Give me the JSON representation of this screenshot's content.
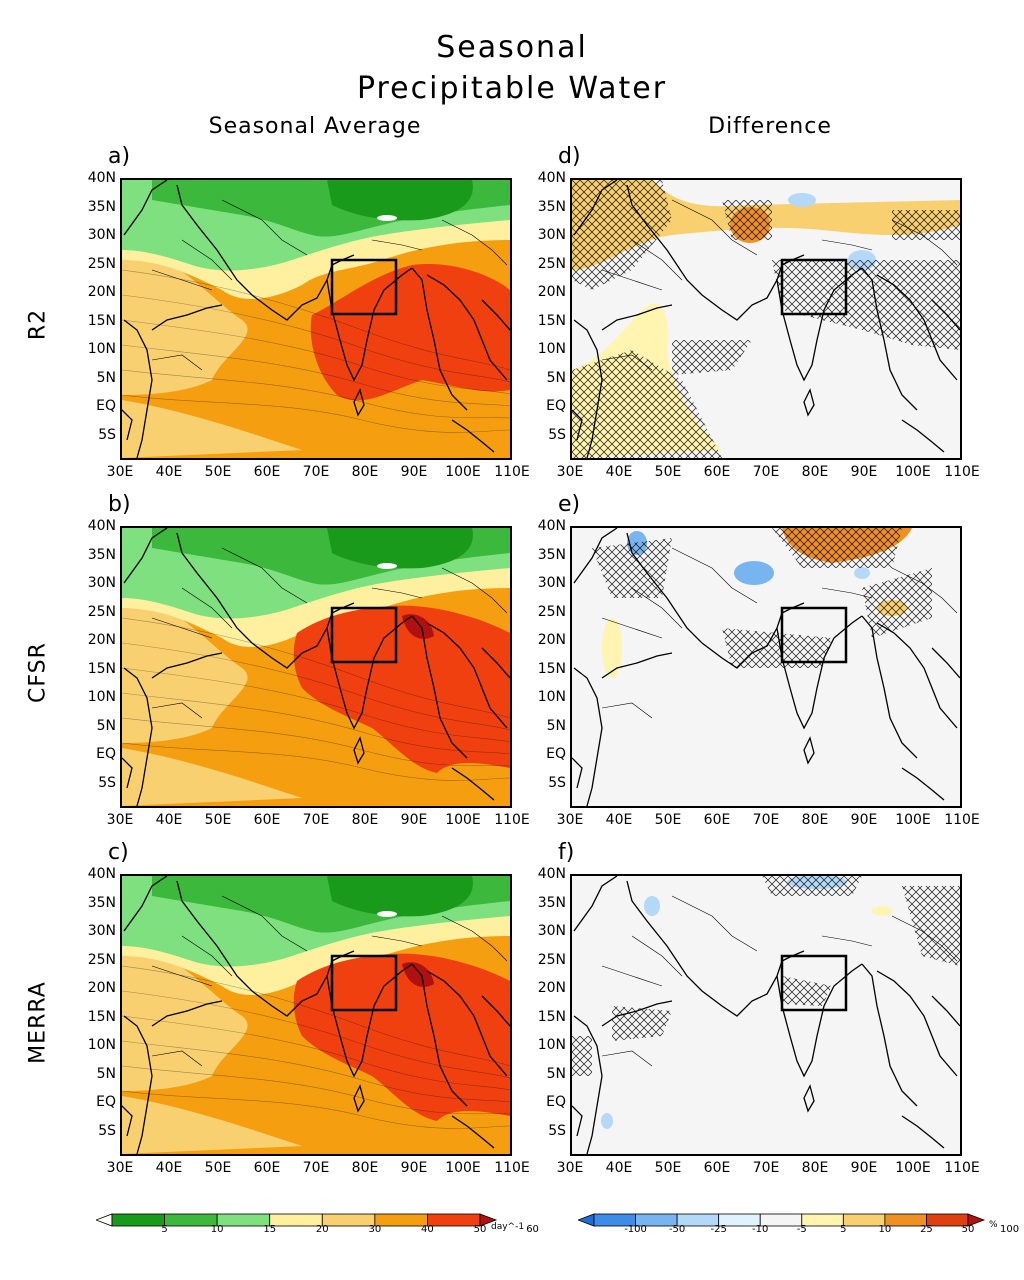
{
  "title": {
    "line1": "Seasonal",
    "line2": "Precipitable Water"
  },
  "column_titles": {
    "left": "Seasonal Average",
    "right": "Difference"
  },
  "row_labels": [
    "R2",
    "CFSR",
    "MERRA"
  ],
  "panels": [
    {
      "label": "a)",
      "kind": "average"
    },
    {
      "label": "d)",
      "kind": "difference"
    },
    {
      "label": "b)",
      "kind": "average"
    },
    {
      "label": "e)",
      "kind": "difference"
    },
    {
      "label": "c)",
      "kind": "average"
    },
    {
      "label": "f)",
      "kind": "difference"
    }
  ],
  "axes": {
    "lat_ticks": [
      "40N",
      "35N",
      "30N",
      "25N",
      "20N",
      "15N",
      "10N",
      "5N",
      "EQ",
      "5S"
    ],
    "lon_ticks": [
      "30E",
      "40E",
      "50E",
      "60E",
      "70E",
      "80E",
      "90E",
      "100E",
      "110E"
    ]
  },
  "colorbar_average": {
    "labels": [
      "5",
      "10",
      "15",
      "20",
      "30",
      "40",
      "50",
      "60"
    ],
    "unit": "day^-1",
    "colors": [
      "#ffffff",
      "#1a9a1a",
      "#3cb83c",
      "#7ee07e",
      "#fff0a0",
      "#f8d070",
      "#f59e10",
      "#f04010",
      "#b01010"
    ]
  },
  "colorbar_difference": {
    "labels": [
      "-100",
      "-50",
      "-25",
      "-10",
      "-5",
      "5",
      "10",
      "25",
      "50",
      "100"
    ],
    "unit": "%",
    "colors": [
      "#1e6ed8",
      "#3c8ce8",
      "#78b4f0",
      "#b4d8f8",
      "#e0f2fc",
      "#f5f5f5",
      "#fff4b0",
      "#f8d070",
      "#f09020",
      "#e04010",
      "#b01010"
    ]
  }
}
